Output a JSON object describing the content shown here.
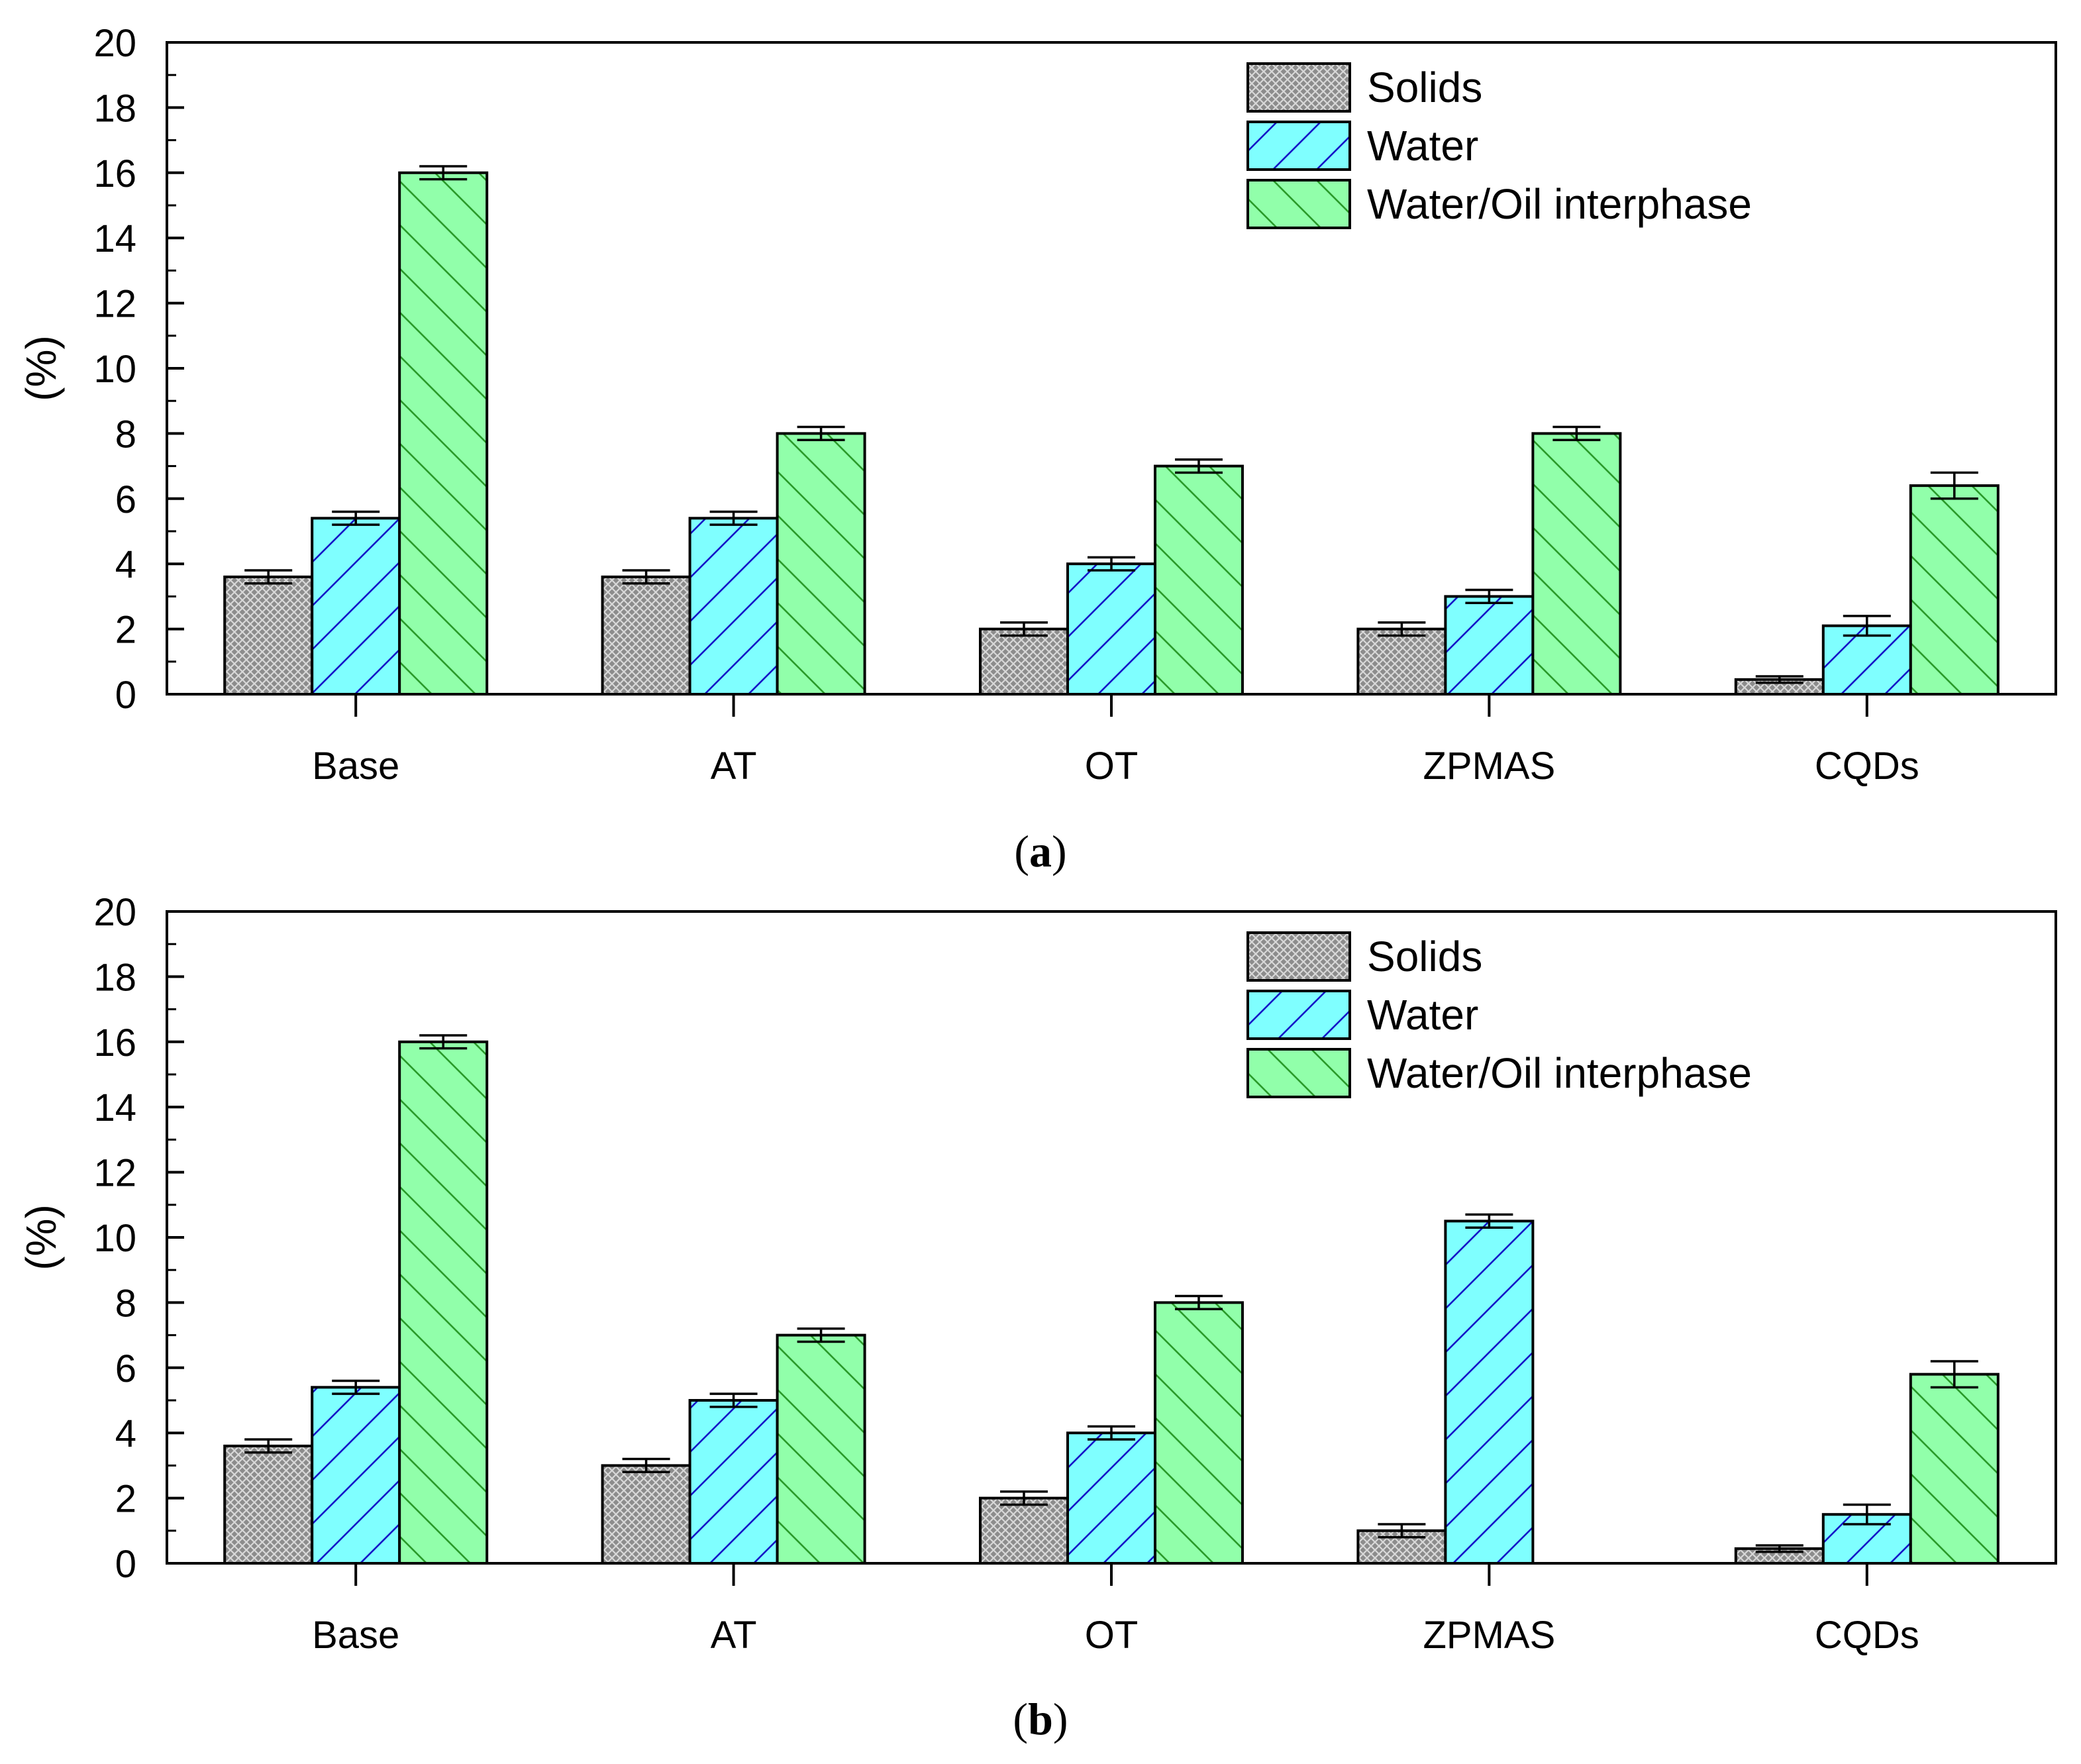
{
  "colors": {
    "solids": "#8c8c8c",
    "water": "#7fffff",
    "interphase": "#91ffaa",
    "water_hatch": "#1414c8",
    "interphase_hatch": "#2a9a2a",
    "axis": "#000000"
  },
  "chart_data": [
    {
      "type": "bar",
      "panel": "a",
      "panel_label": {
        "open": "(",
        "letter": "a",
        "close": ")"
      },
      "title": "",
      "xlabel": "",
      "ylabel": "(%)",
      "ylim": [
        0,
        20
      ],
      "yticks": [
        "0",
        "2",
        "4",
        "6",
        "8",
        "10",
        "12",
        "14",
        "16",
        "18",
        "20"
      ],
      "grid": false,
      "legend_position": "top-right",
      "categories": [
        "Base",
        "AT",
        "OT",
        "ZPMAS",
        "CQDs"
      ],
      "series": [
        {
          "name": "Solids",
          "key": "solids",
          "values": [
            3.6,
            3.6,
            2.0,
            2.0,
            0.45
          ],
          "errors": [
            0.2,
            0.2,
            0.2,
            0.2,
            0.1
          ]
        },
        {
          "name": "Water",
          "key": "water",
          "values": [
            5.4,
            5.4,
            4.0,
            3.0,
            2.1
          ],
          "errors": [
            0.2,
            0.2,
            0.2,
            0.2,
            0.3
          ]
        },
        {
          "name": "Water/Oil interphase",
          "key": "interphase",
          "values": [
            16.0,
            8.0,
            7.0,
            8.0,
            6.4
          ],
          "errors": [
            0.2,
            0.2,
            0.2,
            0.2,
            0.4
          ]
        }
      ]
    },
    {
      "type": "bar",
      "panel": "b",
      "panel_label": {
        "open": "(",
        "letter": "b",
        "close": ")"
      },
      "title": "",
      "xlabel": "",
      "ylabel": "(%)",
      "ylim": [
        0,
        20
      ],
      "yticks": [
        "0",
        "2",
        "4",
        "6",
        "8",
        "10",
        "12",
        "14",
        "16",
        "18",
        "20"
      ],
      "grid": false,
      "legend_position": "top-right",
      "categories": [
        "Base",
        "AT",
        "OT",
        "ZPMAS",
        "CQDs"
      ],
      "series": [
        {
          "name": "Solids",
          "key": "solids",
          "values": [
            3.6,
            3.0,
            2.0,
            1.0,
            0.45
          ],
          "errors": [
            0.2,
            0.2,
            0.2,
            0.2,
            0.1
          ]
        },
        {
          "name": "Water",
          "key": "water",
          "values": [
            5.4,
            5.0,
            4.0,
            10.5,
            1.5
          ],
          "errors": [
            0.2,
            0.2,
            0.2,
            0.2,
            0.3
          ]
        },
        {
          "name": "Water/Oil interphase",
          "key": "interphase",
          "values": [
            16.0,
            7.0,
            8.0,
            0,
            5.8
          ],
          "errors": [
            0.2,
            0.2,
            0.2,
            0,
            0.4
          ]
        }
      ]
    }
  ]
}
